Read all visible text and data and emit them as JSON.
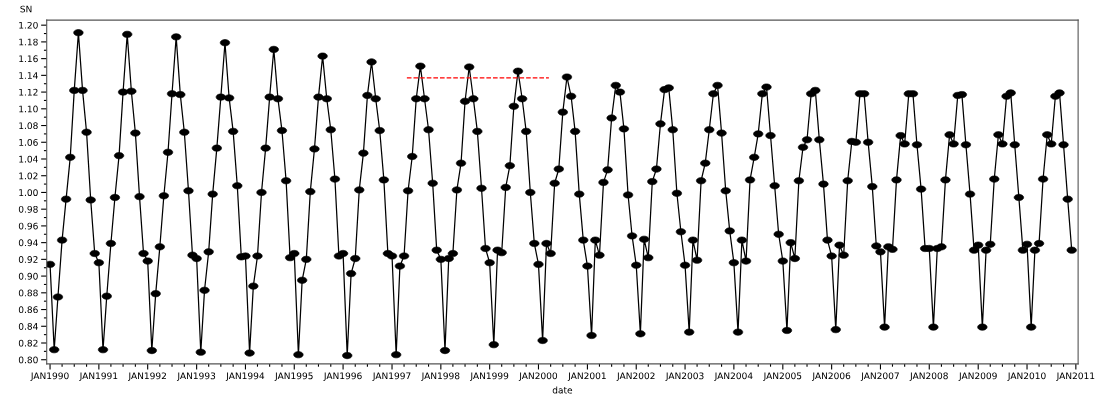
{
  "chart_data": {
    "type": "line",
    "xlabel": "date",
    "ylabel": "SN",
    "marker": "circle",
    "line_style": "solid",
    "xlim": [
      "1989-12-07",
      "2011-01-18"
    ],
    "ylim": [
      0.795,
      1.206
    ],
    "xticks": [
      {
        "value": "1990-01",
        "label": "JAN1990"
      },
      {
        "value": "1991-01",
        "label": "JAN1991"
      },
      {
        "value": "1992-01",
        "label": "JAN1992"
      },
      {
        "value": "1993-01",
        "label": "JAN1993"
      },
      {
        "value": "1994-01",
        "label": "JAN1994"
      },
      {
        "value": "1995-01",
        "label": "JAN1995"
      },
      {
        "value": "1996-01",
        "label": "JAN1996"
      },
      {
        "value": "1997-01",
        "label": "JAN1997"
      },
      {
        "value": "1998-01",
        "label": "JAN1998"
      },
      {
        "value": "1999-01",
        "label": "JAN1999"
      },
      {
        "value": "2000-01",
        "label": "JAN2000"
      },
      {
        "value": "2001-01",
        "label": "JAN2001"
      },
      {
        "value": "2002-01",
        "label": "JAN2002"
      },
      {
        "value": "2003-01",
        "label": "JAN2003"
      },
      {
        "value": "2004-01",
        "label": "JAN2004"
      },
      {
        "value": "2005-01",
        "label": "JAN2005"
      },
      {
        "value": "2006-01",
        "label": "JAN2006"
      },
      {
        "value": "2007-01",
        "label": "JAN2007"
      },
      {
        "value": "2008-01",
        "label": "JAN2008"
      },
      {
        "value": "2009-01",
        "label": "JAN2009"
      },
      {
        "value": "2010-01",
        "label": "JAN2010"
      },
      {
        "value": "2011-01",
        "label": "JAN2011"
      }
    ],
    "yticks": [
      {
        "value": 0.8,
        "label": "0.80"
      },
      {
        "value": 0.82,
        "label": "0.82"
      },
      {
        "value": 0.84,
        "label": "0.84"
      },
      {
        "value": 0.86,
        "label": "0.86"
      },
      {
        "value": 0.88,
        "label": "0.88"
      },
      {
        "value": 0.9,
        "label": "0.90"
      },
      {
        "value": 0.92,
        "label": "0.92"
      },
      {
        "value": 0.94,
        "label": "0.94"
      },
      {
        "value": 0.96,
        "label": "0.96"
      },
      {
        "value": 0.98,
        "label": "0.98"
      },
      {
        "value": 1.0,
        "label": "1.00"
      },
      {
        "value": 1.02,
        "label": "1.02"
      },
      {
        "value": 1.04,
        "label": "1.04"
      },
      {
        "value": 1.06,
        "label": "1.06"
      },
      {
        "value": 1.08,
        "label": "1.08"
      },
      {
        "value": 1.1,
        "label": "1.10"
      },
      {
        "value": 1.12,
        "label": "1.12"
      },
      {
        "value": 1.14,
        "label": "1.14"
      },
      {
        "value": 1.16,
        "label": "1.16"
      },
      {
        "value": 1.18,
        "label": "1.18"
      },
      {
        "value": 1.2,
        "label": "1.20"
      }
    ],
    "x": [
      "1990-01",
      "1990-02",
      "1990-03",
      "1990-04",
      "1990-05",
      "1990-06",
      "1990-07",
      "1990-08",
      "1990-09",
      "1990-10",
      "1990-11",
      "1990-12",
      "1991-01",
      "1991-02",
      "1991-03",
      "1991-04",
      "1991-05",
      "1991-06",
      "1991-07",
      "1991-08",
      "1991-09",
      "1991-10",
      "1991-11",
      "1991-12",
      "1992-01",
      "1992-02",
      "1992-03",
      "1992-04",
      "1992-05",
      "1992-06",
      "1992-07",
      "1992-08",
      "1992-09",
      "1992-10",
      "1992-11",
      "1992-12",
      "1993-01",
      "1993-02",
      "1993-03",
      "1993-04",
      "1993-05",
      "1993-06",
      "1993-07",
      "1993-08",
      "1993-09",
      "1993-10",
      "1993-11",
      "1993-12",
      "1994-01",
      "1994-02",
      "1994-03",
      "1994-04",
      "1994-05",
      "1994-06",
      "1994-07",
      "1994-08",
      "1994-09",
      "1994-10",
      "1994-11",
      "1994-12",
      "1995-01",
      "1995-02",
      "1995-03",
      "1995-04",
      "1995-05",
      "1995-06",
      "1995-07",
      "1995-08",
      "1995-09",
      "1995-10",
      "1995-11",
      "1995-12",
      "1996-01",
      "1996-02",
      "1996-03",
      "1996-04",
      "1996-05",
      "1996-06",
      "1996-07",
      "1996-08",
      "1996-09",
      "1996-10",
      "1996-11",
      "1996-12",
      "1997-01",
      "1997-02",
      "1997-03",
      "1997-04",
      "1997-05",
      "1997-06",
      "1997-07",
      "1997-08",
      "1997-09",
      "1997-10",
      "1997-11",
      "1997-12",
      "1998-01",
      "1998-02",
      "1998-03",
      "1998-04",
      "1998-05",
      "1998-06",
      "1998-07",
      "1998-08",
      "1998-09",
      "1998-10",
      "1998-11",
      "1998-12",
      "1999-01",
      "1999-02",
      "1999-03",
      "1999-04",
      "1999-05",
      "1999-06",
      "1999-07",
      "1999-08",
      "1999-09",
      "1999-10",
      "1999-11",
      "1999-12",
      "2000-01",
      "2000-02",
      "2000-03",
      "2000-04",
      "2000-05",
      "2000-06",
      "2000-07",
      "2000-08",
      "2000-09",
      "2000-10",
      "2000-11",
      "2000-12",
      "2001-01",
      "2001-02",
      "2001-03",
      "2001-04",
      "2001-05",
      "2001-06",
      "2001-07",
      "2001-08",
      "2001-09",
      "2001-10",
      "2001-11",
      "2001-12",
      "2002-01",
      "2002-02",
      "2002-03",
      "2002-04",
      "2002-05",
      "2002-06",
      "2002-07",
      "2002-08",
      "2002-09",
      "2002-10",
      "2002-11",
      "2002-12",
      "2003-01",
      "2003-02",
      "2003-03",
      "2003-04",
      "2003-05",
      "2003-06",
      "2003-07",
      "2003-08",
      "2003-09",
      "2003-10",
      "2003-11",
      "2003-12",
      "2004-01",
      "2004-02",
      "2004-03",
      "2004-04",
      "2004-05",
      "2004-06",
      "2004-07",
      "2004-08",
      "2004-09",
      "2004-10",
      "2004-11",
      "2004-12",
      "2005-01",
      "2005-02",
      "2005-03",
      "2005-04",
      "2005-05",
      "2005-06",
      "2005-07",
      "2005-08",
      "2005-09",
      "2005-10",
      "2005-11",
      "2005-12",
      "2006-01",
      "2006-02",
      "2006-03",
      "2006-04",
      "2006-05",
      "2006-06",
      "2006-07",
      "2006-08",
      "2006-09",
      "2006-10",
      "2006-11",
      "2006-12",
      "2007-01",
      "2007-02",
      "2007-03",
      "2007-04",
      "2007-05",
      "2007-06",
      "2007-07",
      "2007-08",
      "2007-09",
      "2007-10",
      "2007-11",
      "2007-12",
      "2008-01",
      "2008-02",
      "2008-03",
      "2008-04",
      "2008-05",
      "2008-06",
      "2008-07",
      "2008-08",
      "2008-09",
      "2008-10",
      "2008-11",
      "2008-12",
      "2009-01",
      "2009-02",
      "2009-03",
      "2009-04",
      "2009-05",
      "2009-06",
      "2009-07",
      "2009-08",
      "2009-09",
      "2009-10",
      "2009-11",
      "2009-12",
      "2010-01",
      "2010-02",
      "2010-03",
      "2010-04",
      "2010-05",
      "2010-06",
      "2010-07",
      "2010-08",
      "2010-09",
      "2010-10",
      "2010-11",
      "2010-12"
    ],
    "series": [
      {
        "color": "#000000",
        "values": [
          0.914,
          0.812,
          0.875,
          0.943,
          0.992,
          1.042,
          1.122,
          1.191,
          1.122,
          1.072,
          0.991,
          0.927,
          0.916,
          0.812,
          0.876,
          0.939,
          0.994,
          1.044,
          1.12,
          1.189,
          1.121,
          1.071,
          0.995,
          0.927,
          0.918,
          0.811,
          0.879,
          0.935,
          0.996,
          1.048,
          1.118,
          1.186,
          1.117,
          1.072,
          1.002,
          0.925,
          0.921,
          0.809,
          0.883,
          0.929,
          0.998,
          1.053,
          1.114,
          1.179,
          1.113,
          1.073,
          1.008,
          0.923,
          0.924,
          0.808,
          0.888,
          0.924,
          1.0,
          1.053,
          1.114,
          1.171,
          1.112,
          1.074,
          1.014,
          0.922,
          0.927,
          0.806,
          0.895,
          0.92,
          1.001,
          1.052,
          1.114,
          1.163,
          1.112,
          1.075,
          1.016,
          0.924,
          0.927,
          0.805,
          0.903,
          0.921,
          1.003,
          1.047,
          1.116,
          1.156,
          1.112,
          1.074,
          1.015,
          0.927,
          0.924,
          0.806,
          0.912,
          0.924,
          1.002,
          1.043,
          1.112,
          1.151,
          1.112,
          1.075,
          1.011,
          0.931,
          0.92,
          0.811,
          0.921,
          0.927,
          1.003,
          1.035,
          1.109,
          1.15,
          1.112,
          1.073,
          1.005,
          0.933,
          0.916,
          0.818,
          0.931,
          0.928,
          1.006,
          1.032,
          1.103,
          1.145,
          1.112,
          1.073,
          1.0,
          0.939,
          0.914,
          0.823,
          0.939,
          0.927,
          1.011,
          1.028,
          1.096,
          1.138,
          1.115,
          1.073,
          0.998,
          0.943,
          0.912,
          0.829,
          0.943,
          0.925,
          1.012,
          1.027,
          1.089,
          1.128,
          1.12,
          1.076,
          0.997,
          0.948,
          0.913,
          0.831,
          0.944,
          0.922,
          1.013,
          1.028,
          1.082,
          1.123,
          1.125,
          1.075,
          0.999,
          0.953,
          0.913,
          0.833,
          0.943,
          0.919,
          1.014,
          1.035,
          1.075,
          1.118,
          1.128,
          1.071,
          1.002,
          0.954,
          0.916,
          0.833,
          0.943,
          0.918,
          1.015,
          1.042,
          1.07,
          1.118,
          1.126,
          1.068,
          1.008,
          0.95,
          0.918,
          0.835,
          0.94,
          0.921,
          1.014,
          1.054,
          1.063,
          1.118,
          1.122,
          1.063,
          1.01,
          0.943,
          0.924,
          0.836,
          0.937,
          0.925,
          1.014,
          1.061,
          1.06,
          1.118,
          1.118,
          1.06,
          1.007,
          0.936,
          0.929,
          0.839,
          0.935,
          0.932,
          1.015,
          1.068,
          1.058,
          1.118,
          1.118,
          1.057,
          1.004,
          0.933,
          0.933,
          0.839,
          0.933,
          0.935,
          1.015,
          1.069,
          1.058,
          1.116,
          1.117,
          1.057,
          0.998,
          0.931,
          0.937,
          0.839,
          0.931,
          0.938,
          1.016,
          1.069,
          1.058,
          1.115,
          1.119,
          1.057,
          0.994,
          0.931,
          0.938,
          0.839,
          0.931,
          0.939,
          1.016,
          1.069,
          1.058,
          1.115,
          1.119,
          1.057,
          0.992,
          0.931
        ]
      },
      {
        "type": "line",
        "color": "#ff0000",
        "marker": "none",
        "line_style": "dashed",
        "x": [
          "1997-04-22",
          "2000-03-19"
        ],
        "values": [
          1.137,
          1.137
        ]
      }
    ]
  }
}
